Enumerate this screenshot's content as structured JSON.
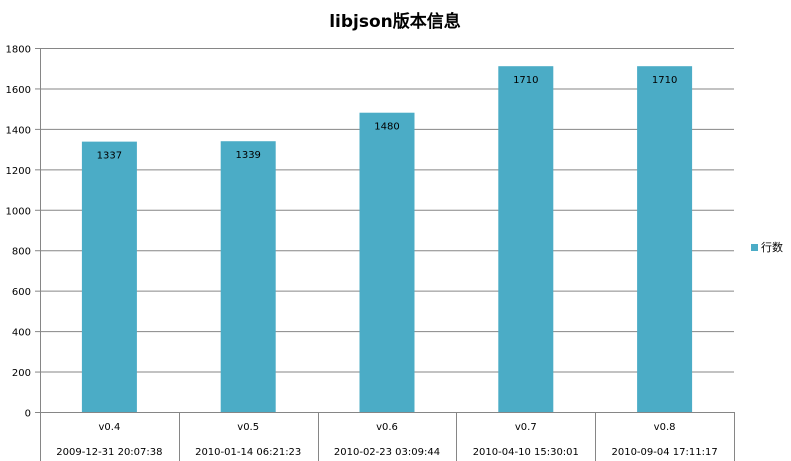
{
  "chart_data": {
    "type": "bar",
    "title": "libjson版本信息",
    "categories": [
      "v0.4",
      "v0.5",
      "v0.6",
      "v0.7",
      "v0.8"
    ],
    "subcategories": [
      "2009-12-31 20:07:38",
      "2010-01-14 06:21:23",
      "2010-02-23 03:09:44",
      "2010-04-10 15:30:01",
      "2010-09-04 17:11:17"
    ],
    "series": [
      {
        "name": "行数",
        "values": [
          1337,
          1339,
          1480,
          1710,
          1710
        ],
        "color": "#4BACC6"
      }
    ],
    "data_labels": [
      "1337",
      "1339",
      "1480",
      "1710",
      "1710"
    ],
    "ylim": [
      0,
      1800
    ],
    "yticks": [
      0,
      200,
      400,
      600,
      800,
      1000,
      1200,
      1400,
      1600,
      1800
    ],
    "ytick_labels": [
      "0",
      "200",
      "400",
      "600",
      "800",
      "1000",
      "1200",
      "1400",
      "1600",
      "1800"
    ],
    "grid": true,
    "legend_position": "right"
  },
  "colors": {
    "bar": "#4BACC6",
    "gridline": "#868686",
    "axis": "#868686"
  }
}
